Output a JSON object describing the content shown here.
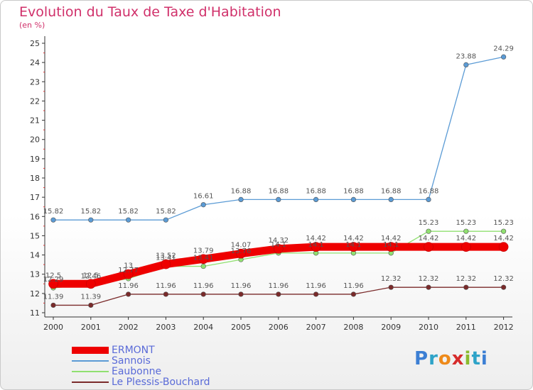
{
  "title": "Evolution du Taux de Taxe d'Habitation",
  "subtitle": "(en %)",
  "brand": {
    "letters": [
      "P",
      "r",
      "o",
      "x",
      "i",
      "t",
      "i"
    ],
    "colors": [
      "#3c7fd4",
      "#2ea3c8",
      "#ee8a1a",
      "#d62b2b",
      "#8bbb2e",
      "#2ea3c8",
      "#3c7fd4"
    ]
  },
  "chart_data": {
    "type": "line",
    "categories": [
      "2000",
      "2001",
      "2002",
      "2003",
      "2004",
      "2005",
      "2006",
      "2007",
      "2008",
      "2009",
      "2010",
      "2011",
      "2012"
    ],
    "ylim": [
      11,
      25
    ],
    "yticks": [
      "11",
      "12",
      "13",
      "14",
      "15",
      "16",
      "17",
      "18",
      "19",
      "20",
      "21",
      "22",
      "23",
      "24",
      "25"
    ],
    "grid": false,
    "legend_position": "bottom-left",
    "series": [
      {
        "name": "ERMONT",
        "color": "#ee0000",
        "values": [
          12.5,
          12.5,
          13,
          13.52,
          13.79,
          14.07,
          14.32,
          14.42,
          14.42,
          14.42,
          14.42,
          14.42,
          14.42
        ],
        "labels": [
          "12.5",
          "12.5",
          "13",
          "13.52",
          "13.79",
          "14.07",
          "14.32",
          "14.42",
          "14.42",
          "14.42",
          "14.42",
          "14.42",
          "14.42"
        ]
      },
      {
        "name": "Sannois",
        "color": "#5b9bd5",
        "values": [
          15.82,
          15.82,
          15.82,
          15.82,
          16.61,
          16.88,
          16.88,
          16.88,
          16.88,
          16.88,
          16.88,
          23.88,
          24.29
        ],
        "labels": [
          "15.82",
          "15.82",
          "15.82",
          "15.82",
          "16.61",
          "16.88",
          "16.88",
          "16.88",
          "16.88",
          "16.88",
          "16.88",
          "23.88",
          "24.29"
        ]
      },
      {
        "name": "Eaubonne",
        "color": "#90e070",
        "values": [
          12.29,
          12.46,
          12.77,
          13.41,
          13.41,
          13.76,
          14.1,
          14.1,
          14.1,
          14.1,
          15.23,
          15.23,
          15.23
        ],
        "labels": [
          "12.29",
          "12.46",
          "12.77",
          "13.41",
          "13.41",
          "13.76",
          "14.1",
          "14.1",
          "14.1",
          "14.1",
          "15.23",
          "15.23",
          "15.23"
        ]
      },
      {
        "name": "Le Plessis-Bouchard",
        "color": "#7a2a2a",
        "values": [
          11.39,
          11.39,
          11.96,
          11.96,
          11.96,
          11.96,
          11.96,
          11.96,
          11.96,
          12.32,
          12.32,
          12.32,
          12.32
        ],
        "labels": [
          "11.39",
          "11.39",
          "11.96",
          "11.96",
          "11.96",
          "11.96",
          "11.96",
          "11.96",
          "11.96",
          "12.32",
          "12.32",
          "12.32",
          "12.32"
        ]
      }
    ]
  }
}
